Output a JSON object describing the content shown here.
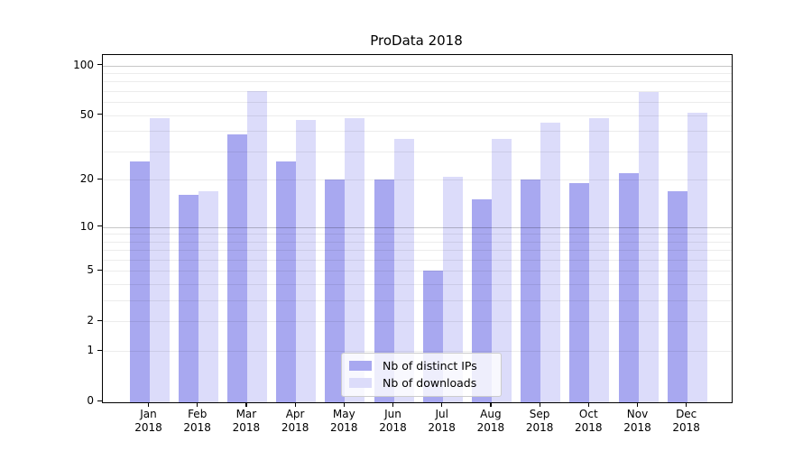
{
  "chart_data": {
    "type": "bar",
    "title": "ProData 2018",
    "categories": [
      "Jan 2018",
      "Feb 2018",
      "Mar 2018",
      "Apr 2018",
      "May 2018",
      "Jun 2018",
      "Jul 2018",
      "Aug 2018",
      "Sep 2018",
      "Oct 2018",
      "Nov 2018",
      "Dec 2018"
    ],
    "series": [
      {
        "name": "Nb of distinct IPs",
        "color": "#a8a8f0",
        "values": [
          26,
          16,
          38,
          26,
          20,
          20,
          5,
          15,
          20,
          19,
          22,
          17
        ]
      },
      {
        "name": "Nb of downloads",
        "color": "#dcdcfa",
        "values": [
          48,
          17,
          70,
          47,
          48,
          36,
          21,
          36,
          45,
          48,
          69,
          52
        ]
      }
    ],
    "y_scale": "log10(value+1)",
    "ylim": [
      0,
      115
    ],
    "y_ticks": [
      100,
      50,
      20,
      10,
      5,
      2,
      1,
      0
    ],
    "y_major_gridlines": [
      100,
      10
    ],
    "y_minor_gridlines": [
      90,
      80,
      70,
      60,
      50,
      40,
      30,
      20,
      9,
      8,
      7,
      6,
      5,
      4,
      3,
      2,
      1
    ],
    "grid": true,
    "legend_position": "lower center",
    "legend_entries": [
      "Nb of distinct IPs",
      "Nb of downloads"
    ]
  }
}
